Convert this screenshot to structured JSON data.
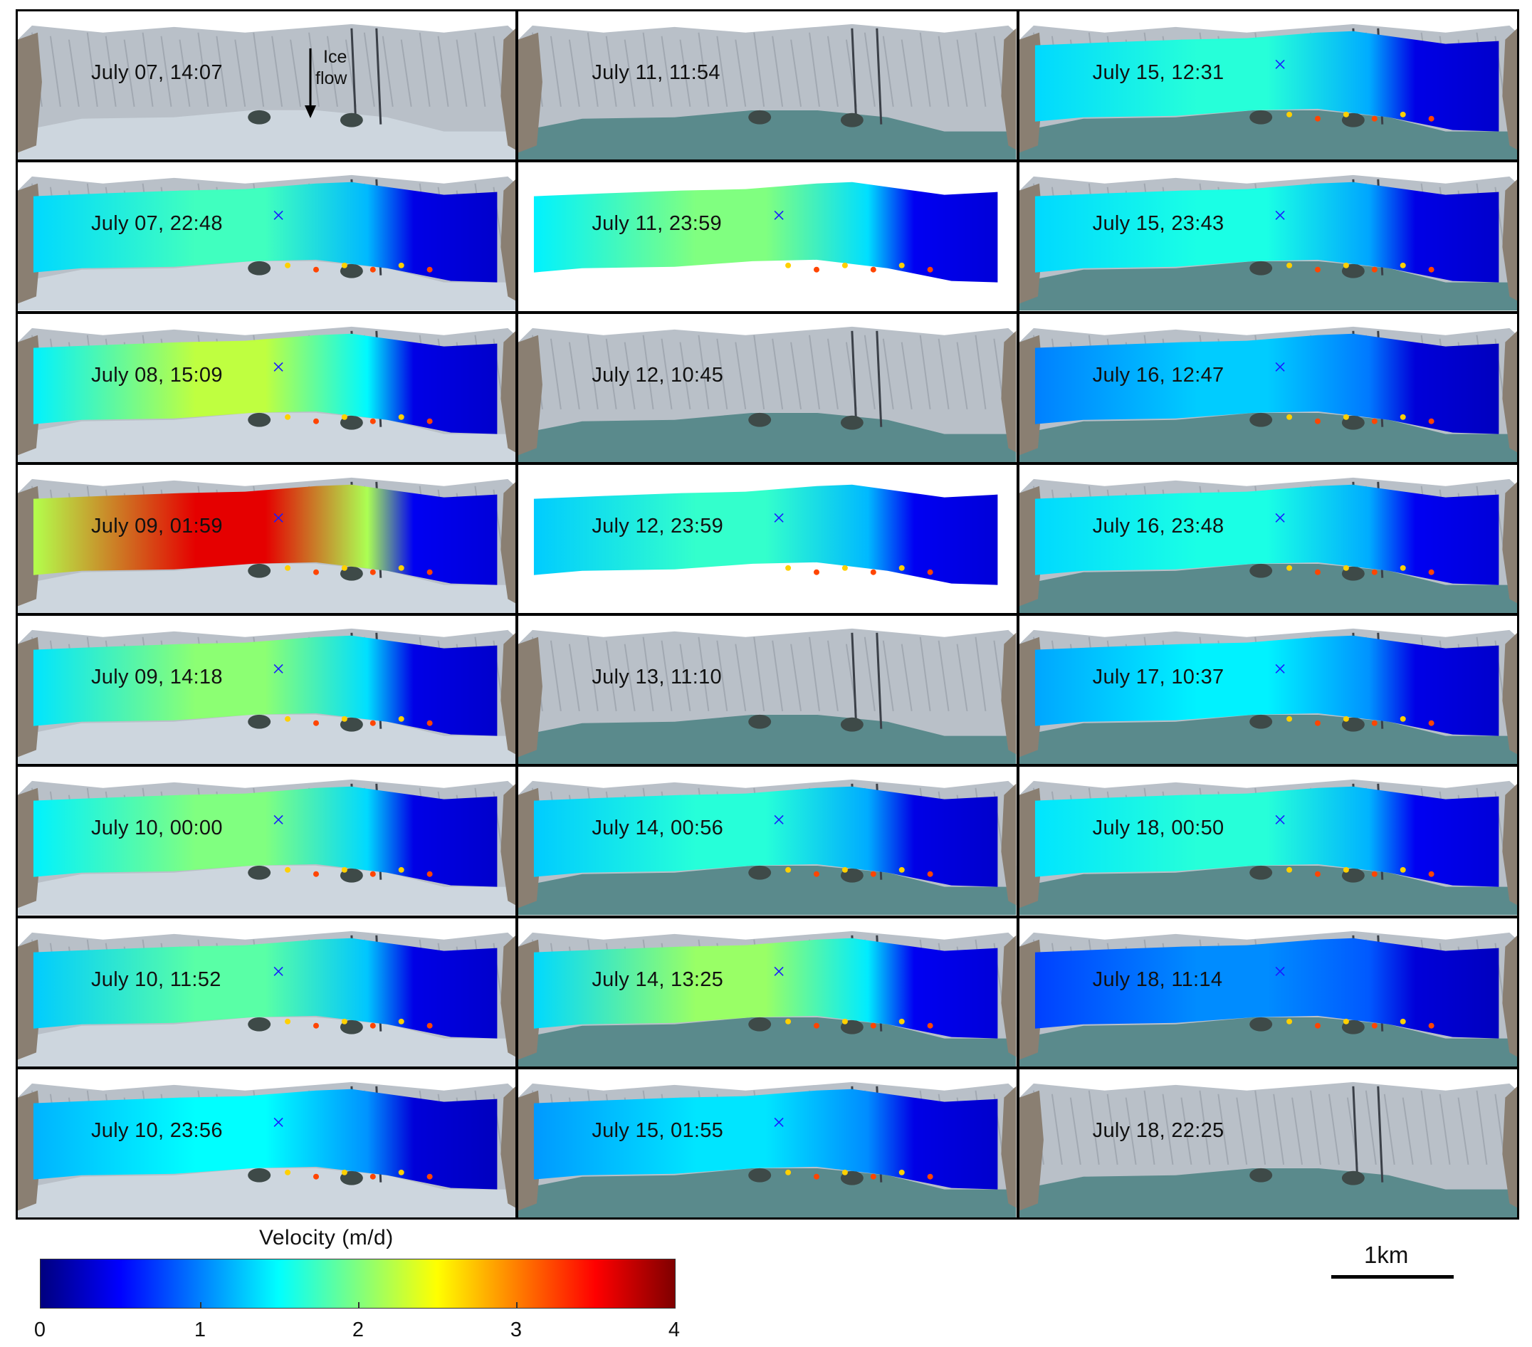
{
  "panels": [
    {
      "label": "July 07, 14:07",
      "mode": "photo",
      "water": false,
      "ice_flow": true
    },
    {
      "label": "July 07, 22:48",
      "mode": "vel",
      "levels": [
        1.35,
        1.75,
        0.3
      ]
    },
    {
      "label": "July 08, 15:09",
      "mode": "vel",
      "levels": [
        1.45,
        2.25,
        0.3
      ]
    },
    {
      "label": "July 09, 01:59",
      "mode": "vel",
      "levels": [
        2.2,
        3.6,
        0.35
      ]
    },
    {
      "label": "July 09, 14:18",
      "mode": "vel",
      "levels": [
        1.4,
        2.05,
        0.3
      ]
    },
    {
      "label": "July 10, 00:00",
      "mode": "vel",
      "levels": [
        1.45,
        2.0,
        0.3
      ]
    },
    {
      "label": "July 10, 11:52",
      "mode": "vel",
      "levels": [
        1.3,
        1.85,
        0.3
      ]
    },
    {
      "label": "July 10, 23:56",
      "mode": "vel",
      "levels": [
        1.2,
        1.5,
        0.25
      ]
    },
    {
      "label": "July 11, 11:54",
      "mode": "photo",
      "water": true
    },
    {
      "label": "July 11, 23:59",
      "mode": "vel-white",
      "levels": [
        1.45,
        2.0,
        0.35
      ]
    },
    {
      "label": "July 12, 10:45",
      "mode": "photo",
      "water": true
    },
    {
      "label": "July 12, 23:59",
      "mode": "vel-white",
      "levels": [
        1.3,
        1.7,
        0.35
      ]
    },
    {
      "label": "July 13, 11:10",
      "mode": "photo",
      "water": true
    },
    {
      "label": "July 14, 00:56",
      "mode": "vel",
      "levels": [
        1.3,
        1.65,
        0.3
      ],
      "water": true
    },
    {
      "label": "July 14, 13:25",
      "mode": "vel",
      "levels": [
        1.35,
        2.1,
        0.35
      ],
      "water": true
    },
    {
      "label": "July 15, 01:55",
      "mode": "vel",
      "levels": [
        1.1,
        1.4,
        0.3
      ],
      "water": true
    },
    {
      "label": "July 15, 12:31",
      "mode": "vel",
      "levels": [
        1.35,
        1.65,
        0.3
      ],
      "water": true
    },
    {
      "label": "July 15, 23:43",
      "mode": "vel",
      "levels": [
        1.35,
        1.6,
        0.3
      ],
      "water": true
    },
    {
      "label": "July 16, 12:47",
      "mode": "vel",
      "levels": [
        1.0,
        1.3,
        0.25
      ],
      "water": true
    },
    {
      "label": "July 16, 23:48",
      "mode": "vel",
      "levels": [
        1.35,
        1.6,
        0.35
      ],
      "water": true
    },
    {
      "label": "July 17, 10:37",
      "mode": "vel",
      "levels": [
        1.15,
        1.45,
        0.3
      ],
      "water": true
    },
    {
      "label": "July 18, 00:50",
      "mode": "vel",
      "levels": [
        1.4,
        1.65,
        0.35
      ],
      "water": true
    },
    {
      "label": "July 18, 11:14",
      "mode": "vel",
      "levels": [
        0.75,
        1.05,
        0.25
      ],
      "water": true
    },
    {
      "label": "July 18, 22:25",
      "mode": "photo",
      "water": true
    }
  ],
  "ice_flow": {
    "line1": "Ice",
    "line2": "flow"
  },
  "colorbar": {
    "title": "Velocity (m/d)",
    "ticks": [
      "0",
      "1",
      "2",
      "3",
      "4"
    ],
    "range": [
      0,
      4
    ],
    "colormap": "jet"
  },
  "scale": {
    "label": "1km"
  }
}
